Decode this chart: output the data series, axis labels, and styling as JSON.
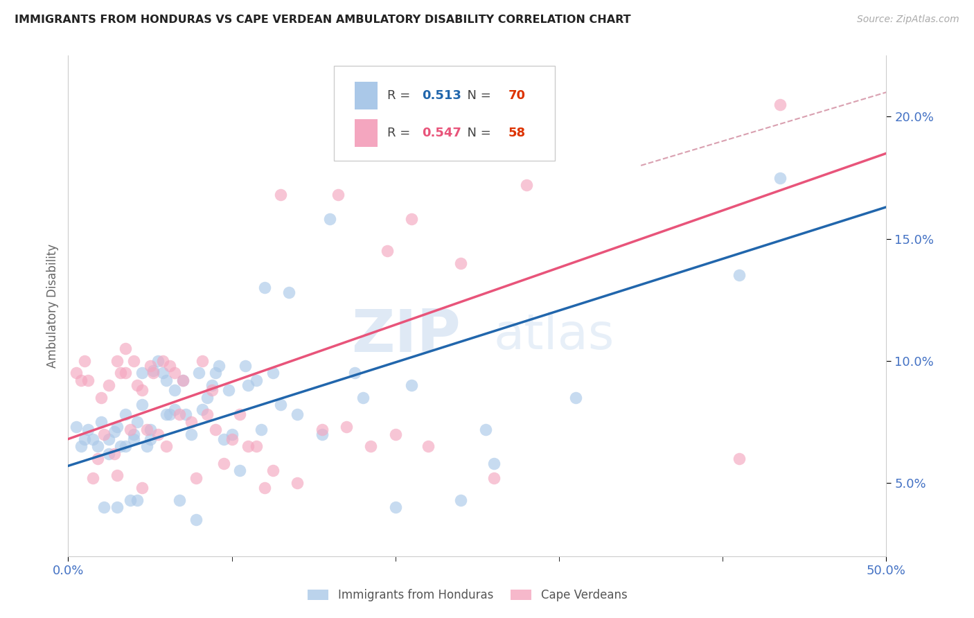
{
  "title": "IMMIGRANTS FROM HONDURAS VS CAPE VERDEAN AMBULATORY DISABILITY CORRELATION CHART",
  "source": "Source: ZipAtlas.com",
  "ylabel": "Ambulatory Disability",
  "xlim": [
    0.0,
    0.5
  ],
  "ylim": [
    0.02,
    0.225
  ],
  "yticks": [
    0.05,
    0.1,
    0.15,
    0.2
  ],
  "xticks": [
    0.0,
    0.5
  ],
  "blue_R": "0.513",
  "blue_N": "70",
  "pink_R": "0.547",
  "pink_N": "58",
  "blue_color": "#aac8e8",
  "pink_color": "#f4a6bf",
  "blue_line_color": "#2166ac",
  "pink_line_color": "#e8547a",
  "ref_line_color": "#d9a0b0",
  "legend_label_blue": "Immigrants from Honduras",
  "legend_label_pink": "Cape Verdeans",
  "blue_scatter_x": [
    0.005,
    0.008,
    0.01,
    0.012,
    0.015,
    0.018,
    0.02,
    0.022,
    0.025,
    0.025,
    0.028,
    0.03,
    0.03,
    0.032,
    0.035,
    0.035,
    0.038,
    0.04,
    0.04,
    0.042,
    0.042,
    0.045,
    0.045,
    0.048,
    0.05,
    0.05,
    0.052,
    0.055,
    0.058,
    0.06,
    0.06,
    0.062,
    0.065,
    0.065,
    0.068,
    0.07,
    0.072,
    0.075,
    0.078,
    0.08,
    0.082,
    0.085,
    0.088,
    0.09,
    0.092,
    0.095,
    0.098,
    0.1,
    0.105,
    0.108,
    0.11,
    0.115,
    0.118,
    0.12,
    0.125,
    0.13,
    0.135,
    0.14,
    0.155,
    0.16,
    0.175,
    0.18,
    0.2,
    0.21,
    0.24,
    0.255,
    0.26,
    0.31,
    0.41,
    0.435
  ],
  "blue_scatter_y": [
    0.073,
    0.065,
    0.068,
    0.072,
    0.068,
    0.065,
    0.075,
    0.04,
    0.062,
    0.068,
    0.071,
    0.073,
    0.04,
    0.065,
    0.065,
    0.078,
    0.043,
    0.068,
    0.07,
    0.043,
    0.075,
    0.095,
    0.082,
    0.065,
    0.072,
    0.068,
    0.096,
    0.1,
    0.095,
    0.092,
    0.078,
    0.078,
    0.08,
    0.088,
    0.043,
    0.092,
    0.078,
    0.07,
    0.035,
    0.095,
    0.08,
    0.085,
    0.09,
    0.095,
    0.098,
    0.068,
    0.088,
    0.07,
    0.055,
    0.098,
    0.09,
    0.092,
    0.072,
    0.13,
    0.095,
    0.082,
    0.128,
    0.078,
    0.07,
    0.158,
    0.095,
    0.085,
    0.04,
    0.09,
    0.043,
    0.072,
    0.058,
    0.085,
    0.135,
    0.175
  ],
  "pink_scatter_x": [
    0.005,
    0.008,
    0.01,
    0.012,
    0.015,
    0.018,
    0.02,
    0.022,
    0.025,
    0.028,
    0.03,
    0.03,
    0.032,
    0.035,
    0.035,
    0.038,
    0.04,
    0.042,
    0.045,
    0.045,
    0.048,
    0.05,
    0.052,
    0.055,
    0.058,
    0.06,
    0.062,
    0.065,
    0.068,
    0.07,
    0.075,
    0.078,
    0.082,
    0.085,
    0.088,
    0.09,
    0.095,
    0.1,
    0.105,
    0.11,
    0.115,
    0.12,
    0.125,
    0.13,
    0.14,
    0.155,
    0.165,
    0.17,
    0.185,
    0.195,
    0.2,
    0.21,
    0.22,
    0.24,
    0.26,
    0.28,
    0.41,
    0.435
  ],
  "pink_scatter_y": [
    0.095,
    0.092,
    0.1,
    0.092,
    0.052,
    0.06,
    0.085,
    0.07,
    0.09,
    0.062,
    0.1,
    0.053,
    0.095,
    0.105,
    0.095,
    0.072,
    0.1,
    0.09,
    0.088,
    0.048,
    0.072,
    0.098,
    0.095,
    0.07,
    0.1,
    0.065,
    0.098,
    0.095,
    0.078,
    0.092,
    0.075,
    0.052,
    0.1,
    0.078,
    0.088,
    0.072,
    0.058,
    0.068,
    0.078,
    0.065,
    0.065,
    0.048,
    0.055,
    0.168,
    0.05,
    0.072,
    0.168,
    0.073,
    0.065,
    0.145,
    0.07,
    0.158,
    0.065,
    0.14,
    0.052,
    0.172,
    0.06,
    0.205
  ],
  "blue_trend_x": [
    0.0,
    0.5
  ],
  "blue_trend_y": [
    0.057,
    0.163
  ],
  "pink_trend_x": [
    0.0,
    0.5
  ],
  "pink_trend_y": [
    0.068,
    0.185
  ],
  "ref_line_x": [
    0.35,
    0.5
  ],
  "ref_line_y": [
    0.18,
    0.21
  ],
  "watermark_zip": "ZIP",
  "watermark_atlas": "atlas",
  "background_color": "#ffffff",
  "grid_color": "#e0e0e0",
  "tick_color": "#4472c4",
  "ylabel_color": "#666666",
  "title_color": "#222222"
}
